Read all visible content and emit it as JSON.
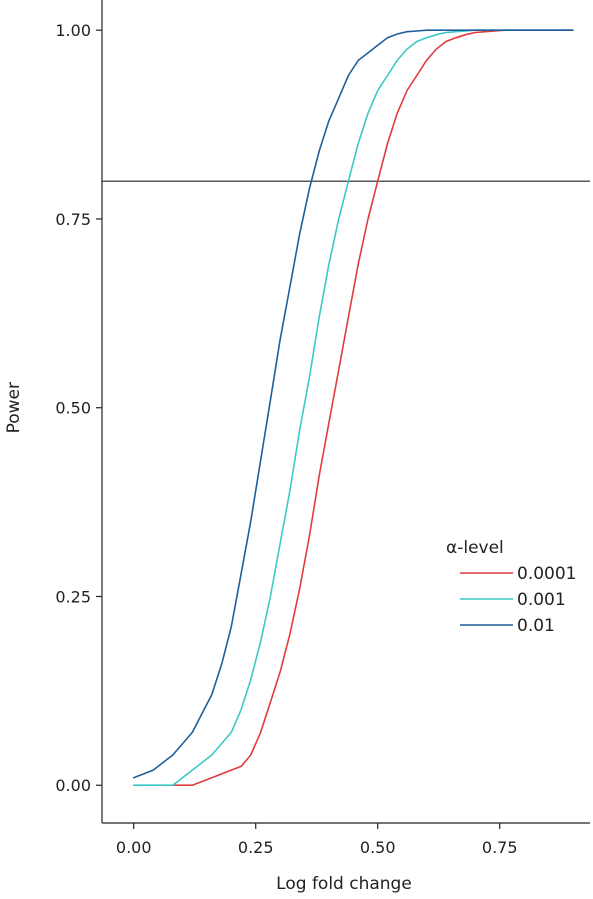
{
  "chart_data": {
    "type": "line",
    "xlabel": "Log fold change",
    "ylabel": "Power",
    "xlim": [
      -0.065,
      0.935
    ],
    "ylim": [
      -0.05,
      1.04
    ],
    "x_ticks": [
      0.0,
      0.25,
      0.5,
      0.75
    ],
    "x_tick_labels": [
      "0.00",
      "0.25",
      "0.50",
      "0.75"
    ],
    "y_ticks": [
      0.0,
      0.25,
      0.5,
      0.75,
      1.0
    ],
    "y_tick_labels": [
      "0.00",
      "0.25",
      "0.50",
      "0.75",
      "1.00"
    ],
    "reference_line": {
      "orientation": "horizontal",
      "y": 0.8
    },
    "legend": {
      "title": "α-level",
      "placement": "right"
    },
    "series": [
      {
        "name": "0.0001",
        "color": "#e03c3c",
        "x": [
          0.08,
          0.12,
          0.16,
          0.2,
          0.22,
          0.24,
          0.26,
          0.28,
          0.3,
          0.32,
          0.34,
          0.36,
          0.38,
          0.4,
          0.42,
          0.44,
          0.46,
          0.48,
          0.5,
          0.52,
          0.54,
          0.56,
          0.58,
          0.6,
          0.62,
          0.64,
          0.66,
          0.68,
          0.7,
          0.72,
          0.74,
          0.76,
          0.78,
          0.8,
          0.85,
          0.9
        ],
        "y": [
          0.0,
          0.0,
          0.01,
          0.02,
          0.025,
          0.04,
          0.07,
          0.11,
          0.15,
          0.2,
          0.26,
          0.33,
          0.41,
          0.48,
          0.55,
          0.62,
          0.69,
          0.75,
          0.8,
          0.85,
          0.89,
          0.92,
          0.94,
          0.96,
          0.975,
          0.985,
          0.99,
          0.994,
          0.997,
          0.998,
          0.999,
          1.0,
          1.0,
          1.0,
          1.0,
          1.0
        ]
      },
      {
        "name": "0.001",
        "color": "#3cc8c8",
        "x": [
          0.0,
          0.04,
          0.08,
          0.12,
          0.16,
          0.2,
          0.22,
          0.24,
          0.26,
          0.28,
          0.3,
          0.32,
          0.34,
          0.36,
          0.38,
          0.4,
          0.42,
          0.44,
          0.46,
          0.48,
          0.5,
          0.52,
          0.54,
          0.56,
          0.58,
          0.6,
          0.62,
          0.64,
          0.66,
          0.68,
          0.7,
          0.72,
          0.74,
          0.76,
          0.8,
          0.85,
          0.9
        ],
        "y": [
          0.0,
          0.0,
          0.0,
          0.02,
          0.04,
          0.07,
          0.1,
          0.14,
          0.19,
          0.25,
          0.32,
          0.39,
          0.47,
          0.54,
          0.62,
          0.69,
          0.75,
          0.8,
          0.85,
          0.89,
          0.92,
          0.94,
          0.96,
          0.975,
          0.985,
          0.99,
          0.994,
          0.997,
          0.998,
          0.999,
          1.0,
          1.0,
          1.0,
          1.0,
          1.0,
          1.0,
          1.0
        ]
      },
      {
        "name": "0.01",
        "color": "#1f5f9a",
        "x": [
          0.0,
          0.04,
          0.08,
          0.12,
          0.16,
          0.18,
          0.2,
          0.22,
          0.24,
          0.26,
          0.28,
          0.3,
          0.32,
          0.34,
          0.36,
          0.38,
          0.4,
          0.42,
          0.44,
          0.46,
          0.48,
          0.5,
          0.52,
          0.54,
          0.56,
          0.58,
          0.6,
          0.62,
          0.64,
          0.66,
          0.7,
          0.75,
          0.8,
          0.85,
          0.9
        ],
        "y": [
          0.01,
          0.02,
          0.04,
          0.07,
          0.12,
          0.16,
          0.21,
          0.28,
          0.35,
          0.43,
          0.51,
          0.59,
          0.66,
          0.73,
          0.79,
          0.84,
          0.88,
          0.91,
          0.94,
          0.96,
          0.97,
          0.98,
          0.99,
          0.995,
          0.998,
          0.999,
          1.0,
          1.0,
          1.0,
          1.0,
          1.0,
          1.0,
          1.0,
          1.0,
          1.0
        ]
      }
    ]
  }
}
